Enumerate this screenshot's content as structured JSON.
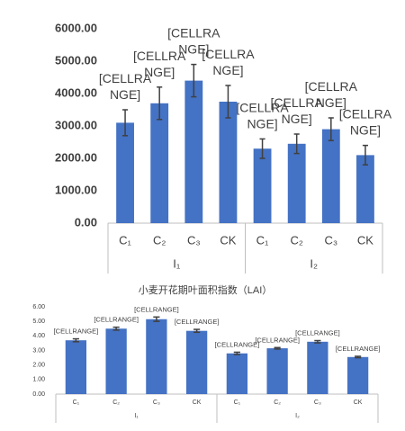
{
  "chart_data": [
    {
      "type": "bar",
      "categories": [
        "C₁",
        "C₂",
        "C₃",
        "CK",
        "C₁",
        "C₂",
        "C₃",
        "CK"
      ],
      "group_labels": [
        "I₁",
        "I₂"
      ],
      "values": [
        3100,
        3700,
        4400,
        3750,
        2300,
        2450,
        2900,
        2100
      ],
      "errors": [
        400,
        500,
        500,
        500,
        300,
        300,
        350,
        300
      ],
      "data_labels": [
        "[CELLRANGE]",
        "[CELLRANGE]",
        "[CELLRANGE]",
        "[CELLRANGE]",
        "[CELLRANGE]",
        "[CELLRANGE]",
        "[CELLRANGE]",
        "[CELLRANGE]"
      ],
      "color": "#4472c4",
      "ylim": [
        0,
        6000
      ],
      "yticks": [
        {
          "value": 0,
          "label": "0.00"
        },
        {
          "value": 1000,
          "label": "1000.00"
        },
        {
          "value": 2000,
          "label": "2000.00"
        },
        {
          "value": 3000,
          "label": "3000.00"
        },
        {
          "value": 4000,
          "label": "4000.00"
        },
        {
          "value": 5000,
          "label": "5000.00"
        },
        {
          "value": 6000,
          "label": "6000.00"
        }
      ]
    },
    {
      "type": "bar",
      "title": "小麦开花期叶面积指数（LAI）",
      "categories": [
        "C₁",
        "C₂",
        "C₃",
        "CK",
        "C₁",
        "C₂",
        "C₃",
        "CK"
      ],
      "group_labels": [
        "I₁",
        "I₂"
      ],
      "values": [
        3.7,
        4.5,
        5.15,
        4.35,
        2.8,
        3.15,
        3.6,
        2.55
      ],
      "errors": [
        0.1,
        0.1,
        0.15,
        0.1,
        0.08,
        0.05,
        0.08,
        0.05
      ],
      "data_labels": [
        "[CELLRANGE]",
        "[CELLRANGE]",
        "[CELLRANGE]",
        "[CELLRANGE]",
        "[CELLRANGE]",
        "[CELLRANGE]",
        "[CELLRANGE]",
        "[CELLRANGE]"
      ],
      "color": "#4472c4",
      "ylim": [
        0,
        6
      ],
      "yticks": [
        {
          "value": 0,
          "label": "0.00"
        },
        {
          "value": 1,
          "label": "1.00"
        },
        {
          "value": 2,
          "label": "2.00"
        },
        {
          "value": 3,
          "label": "3.00"
        },
        {
          "value": 4,
          "label": "4.00"
        },
        {
          "value": 5,
          "label": "5.00"
        },
        {
          "value": 6,
          "label": "6.00"
        }
      ]
    }
  ]
}
